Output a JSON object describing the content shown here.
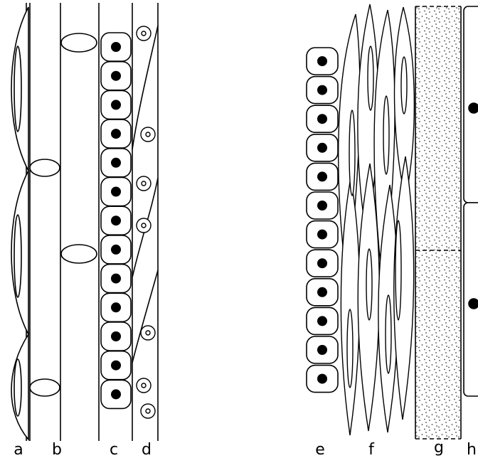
{
  "diagram": {
    "labels": [
      {
        "id": "a",
        "text": "a"
      },
      {
        "id": "b",
        "text": "b"
      },
      {
        "id": "c",
        "text": "c"
      },
      {
        "id": "d",
        "text": "d"
      },
      {
        "id": "e",
        "text": "e"
      },
      {
        "id": "f",
        "text": "f"
      },
      {
        "id": "g",
        "text": "g"
      },
      {
        "id": "h",
        "text": "h"
      }
    ],
    "colors": {
      "stroke": "#000000",
      "fill": "#ffffff",
      "stipple": "#444444"
    }
  }
}
